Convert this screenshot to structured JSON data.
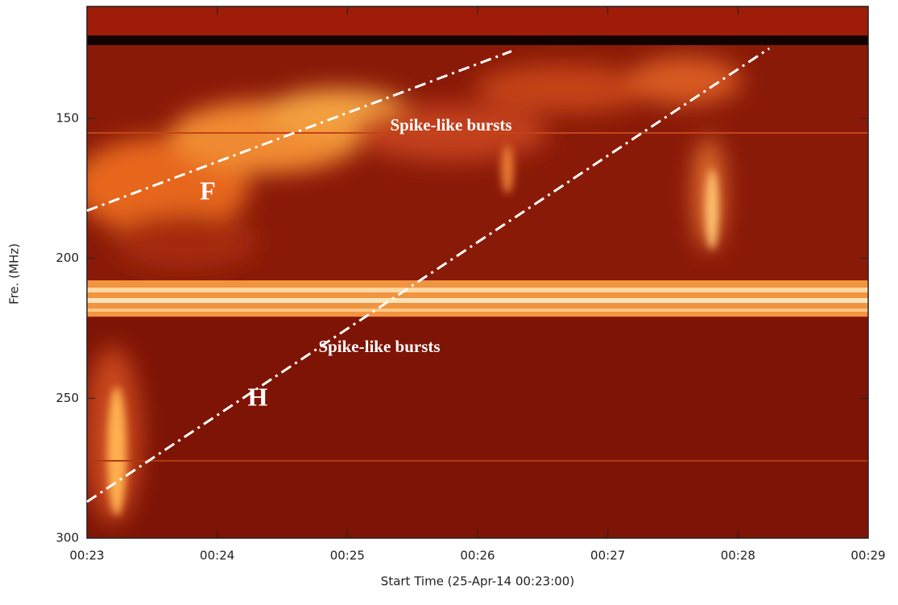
{
  "chart_data": {
    "type": "spectrogram",
    "xlabel": "Start Time (25-Apr-14 00:23:00)",
    "ylabel": "Fre. (MHz)",
    "xlim": [
      0,
      6
    ],
    "xticks": [
      {
        "value": 0,
        "label": "00:23"
      },
      {
        "value": 1,
        "label": "00:24"
      },
      {
        "value": 2,
        "label": "00:25"
      },
      {
        "value": 3,
        "label": "00:26"
      },
      {
        "value": 4,
        "label": "00:27"
      },
      {
        "value": 5,
        "label": "00:28"
      },
      {
        "value": 6,
        "label": "00:29"
      }
    ],
    "ylim": [
      300,
      110
    ],
    "yticks": [
      150,
      200,
      250,
      300
    ],
    "lines": [
      {
        "x": [
          0,
          3.26
        ],
        "values": [
          183,
          126
        ],
        "color": "#ffffff"
      },
      {
        "x": [
          0,
          5.24
        ],
        "values": [
          287,
          125
        ],
        "color": "#ffffff"
      }
    ],
    "annotations": [
      "Spike-like bursts",
      "F",
      "Spike-like bursts",
      "H"
    ]
  }
}
